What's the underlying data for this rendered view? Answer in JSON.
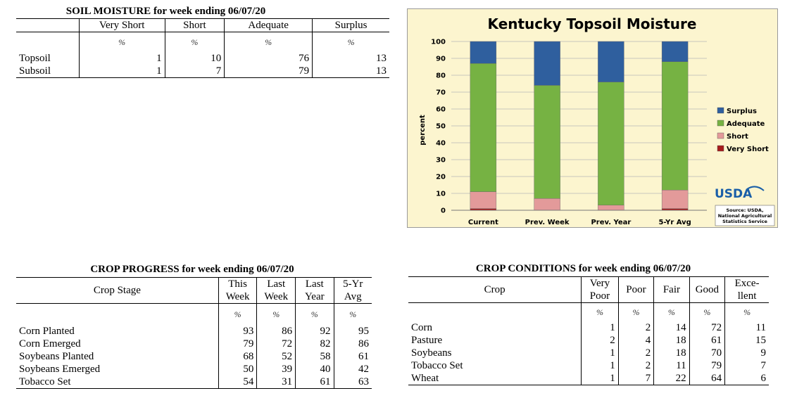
{
  "soil_moisture": {
    "title": "SOIL MOISTURE for week ending 06/07/20",
    "columns": [
      "Very Short",
      "Short",
      "Adequate",
      "Surplus"
    ],
    "unit": "%",
    "rows": [
      {
        "label": "Topsoil",
        "values": [
          "1",
          "10",
          "76",
          "13"
        ]
      },
      {
        "label": "Subsoil",
        "values": [
          "1",
          "7",
          "79",
          "13"
        ]
      }
    ]
  },
  "crop_progress": {
    "title": "CROP PROGRESS for week ending 06/07/20",
    "stage_header": "Crop Stage",
    "columns": [
      {
        "line1": "This",
        "line2": "Week"
      },
      {
        "line1": "Last",
        "line2": "Week"
      },
      {
        "line1": "Last",
        "line2": "Year"
      },
      {
        "line1": "5-Yr",
        "line2": "Avg"
      }
    ],
    "unit": "%",
    "rows": [
      {
        "label": "Corn Planted",
        "values": [
          "93",
          "86",
          "92",
          "95"
        ]
      },
      {
        "label": "Corn Emerged",
        "values": [
          "79",
          "72",
          "82",
          "86"
        ]
      },
      {
        "label": "Soybeans Planted",
        "values": [
          "68",
          "52",
          "58",
          "61"
        ]
      },
      {
        "label": "Soybeans Emerged",
        "values": [
          "50",
          "39",
          "40",
          "42"
        ]
      },
      {
        "label": "Tobacco Set",
        "values": [
          "54",
          "31",
          "61",
          "63"
        ]
      }
    ]
  },
  "crop_conditions": {
    "title": "CROP CONDITIONS for week ending 06/07/20",
    "crop_header": "Crop",
    "columns": [
      {
        "line1": "Very",
        "line2": "Poor"
      },
      {
        "line1": "Poor",
        "line2": ""
      },
      {
        "line1": "Fair",
        "line2": ""
      },
      {
        "line1": "Good",
        "line2": ""
      },
      {
        "line1": "Exce-",
        "line2": "llent"
      }
    ],
    "unit": "%",
    "rows": [
      {
        "label": "Corn",
        "values": [
          "1",
          "2",
          "14",
          "72",
          "11"
        ]
      },
      {
        "label": "Pasture",
        "values": [
          "2",
          "4",
          "18",
          "61",
          "15"
        ]
      },
      {
        "label": "Soybeans",
        "values": [
          "1",
          "2",
          "18",
          "70",
          "9"
        ]
      },
      {
        "label": "Tobacco Set",
        "values": [
          "1",
          "2",
          "11",
          "79",
          "7"
        ]
      },
      {
        "label": "Wheat",
        "values": [
          "1",
          "7",
          "22",
          "64",
          "6"
        ]
      }
    ]
  },
  "chart_data": {
    "type": "bar",
    "stacked": true,
    "title": "Kentucky Topsoil Moisture",
    "ylabel": "percent",
    "ylim": [
      0,
      100
    ],
    "yticks": [
      0,
      10,
      20,
      30,
      40,
      50,
      60,
      70,
      80,
      90,
      100
    ],
    "grid": true,
    "legend": "right",
    "categories": [
      "Current",
      "Prev. Week",
      "Prev. Year",
      "5-Yr Avg"
    ],
    "series": [
      {
        "name": "Very Short",
        "color": "#a61c1c",
        "values": [
          1,
          0,
          0,
          1
        ]
      },
      {
        "name": "Short",
        "color": "#e39a9a",
        "values": [
          10,
          7,
          3,
          11
        ]
      },
      {
        "name": "Adequate",
        "color": "#76b243",
        "values": [
          76,
          67,
          73,
          76
        ]
      },
      {
        "name": "Surplus",
        "color": "#2f5f9e",
        "values": [
          13,
          26,
          24,
          12
        ]
      }
    ],
    "logo_text": "USDA",
    "source_lines": [
      "Source: USDA,",
      "National Agricultural",
      "Statistics Service"
    ]
  }
}
